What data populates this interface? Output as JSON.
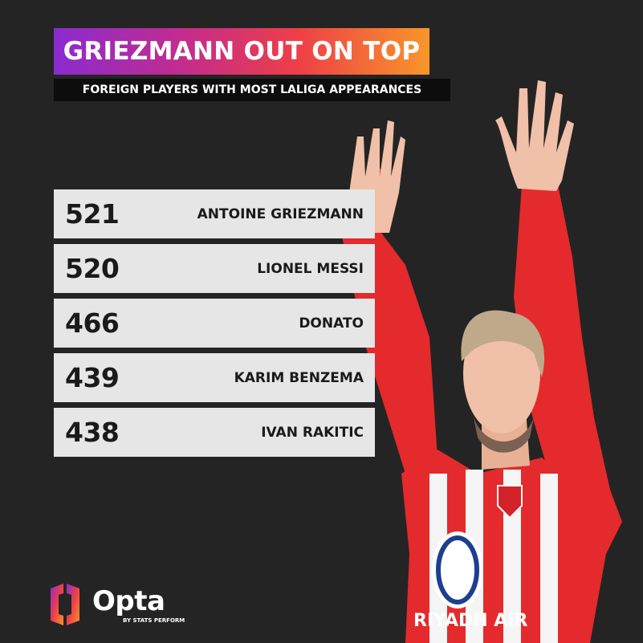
{
  "header": {
    "title": "GRIEZMANN OUT ON TOP",
    "subtitle": "FOREIGN PLAYERS WITH MOST LALIGA APPEARANCES"
  },
  "rankings": [
    {
      "value": "521",
      "name": "ANTOINE GRIEZMANN"
    },
    {
      "value": "520",
      "name": "LIONEL MESSI"
    },
    {
      "value": "466",
      "name": "DONATO"
    },
    {
      "value": "439",
      "name": "KARIM BENZEMA"
    },
    {
      "value": "438",
      "name": "IVAN RAKITIC"
    }
  ],
  "player_image": {
    "jersey_sponsor": "RIYADH AIR"
  },
  "brand": {
    "name": "Opta",
    "tagline": "BY STATS PERFORM"
  },
  "colors": {
    "background": "#242424",
    "title_gradient": [
      "#8a2bcf",
      "#c42c8c",
      "#ee3f47",
      "#f8962a"
    ],
    "row_background": "#e6e6e6",
    "jersey_red": "#e42a2c"
  }
}
